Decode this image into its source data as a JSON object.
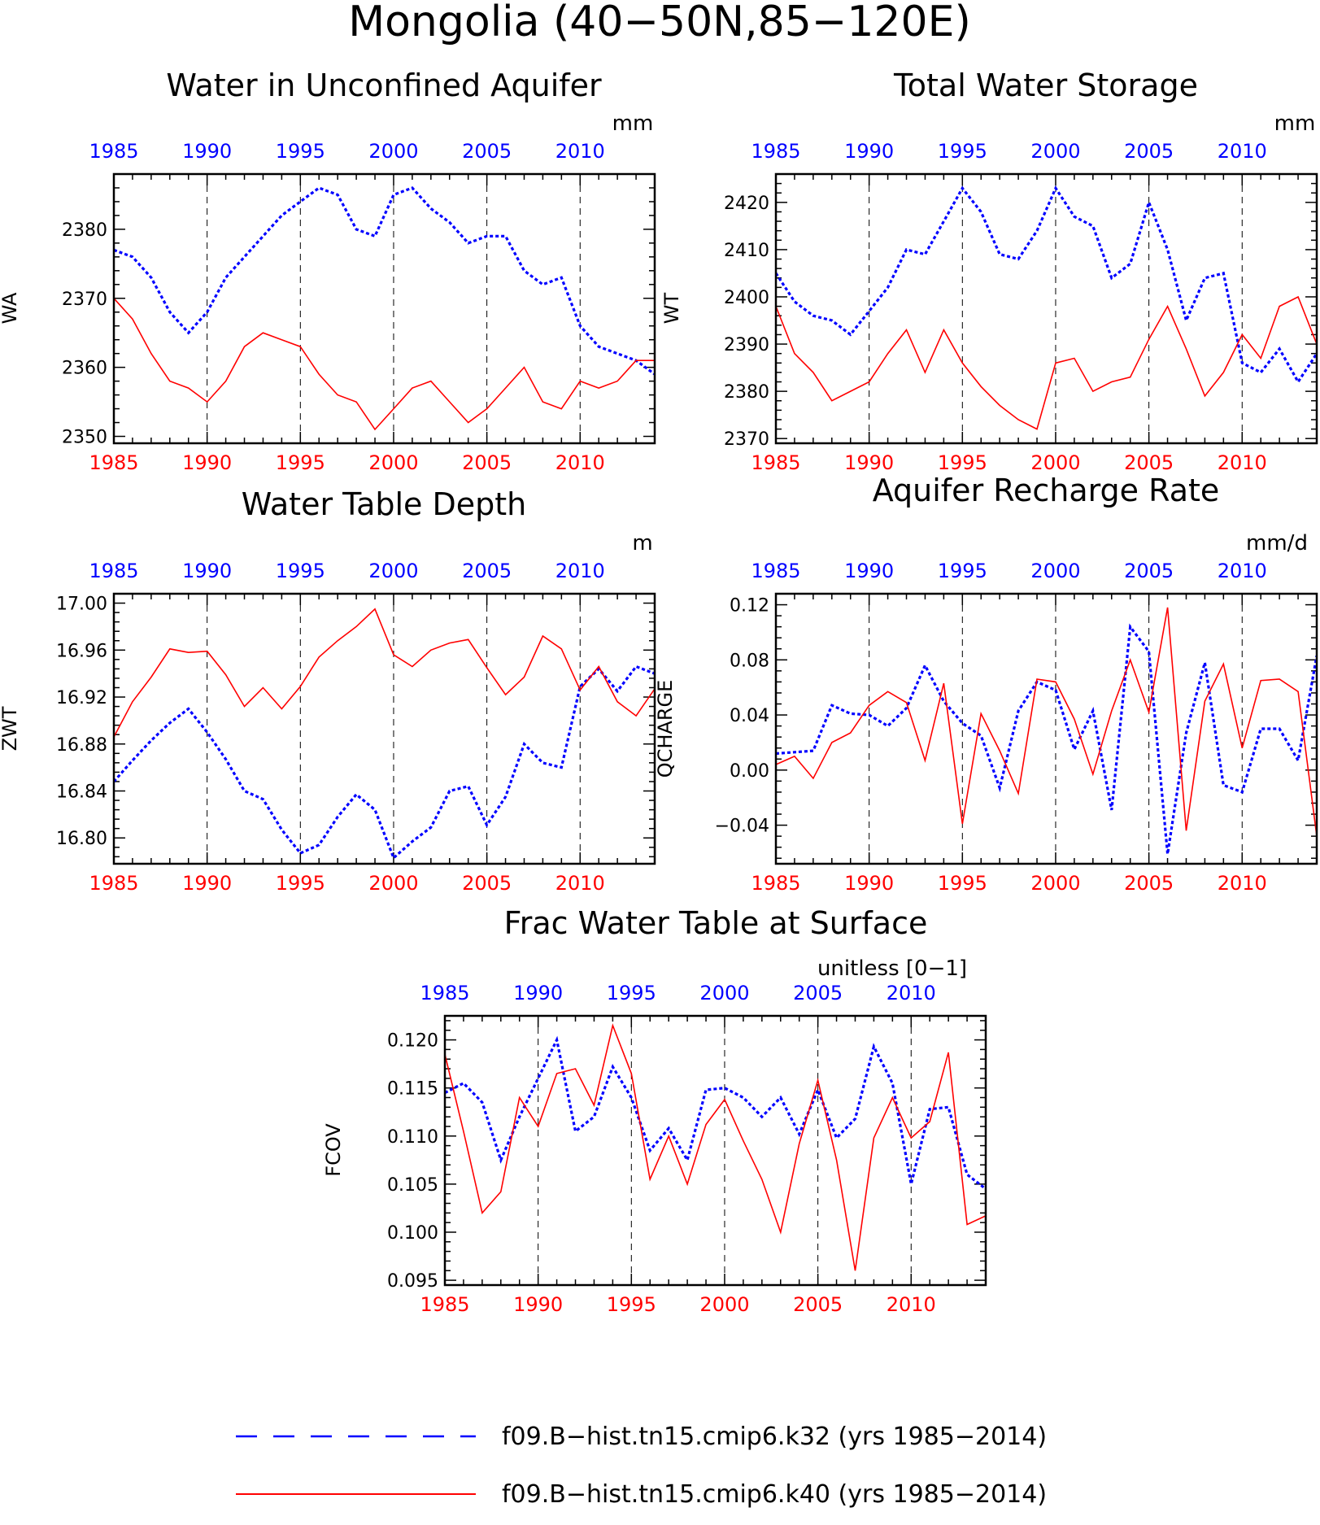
{
  "figure": {
    "title": "Mongolia (40−50N,85−120E)",
    "colors": {
      "k32": "#0000ff",
      "k40": "#ff0000",
      "axis": "#000000"
    },
    "legend": {
      "placement": "bottom",
      "entries": [
        {
          "series": "k32",
          "label": "f09.B−hist.tn15.cmip6.k32 (yrs 1985−2014)",
          "style": "dashed"
        },
        {
          "series": "k40",
          "label": "f09.B−hist.tn15.cmip6.k40 (yrs 1985−2014)",
          "style": "solid"
        }
      ]
    }
  },
  "chart_data": [
    {
      "id": "wa",
      "type": "line",
      "title": "Water in Unconfined Aquifer",
      "ylabel": "WA",
      "units": "mm",
      "xlim": [
        1985,
        2014
      ],
      "ylim": [
        2349,
        2388
      ],
      "yticks": [
        2350,
        2360,
        2370,
        2380
      ],
      "ytick_labels": [
        "2350",
        "2360",
        "2370",
        "2380"
      ],
      "xticks": [
        1985,
        1990,
        1995,
        2000,
        2005,
        2010
      ],
      "grid": "vertical dashed at 1990, 1995, 2000, 2005, 2010",
      "x": [
        1985,
        1986,
        1987,
        1988,
        1989,
        1990,
        1991,
        1992,
        1993,
        1994,
        1995,
        1996,
        1997,
        1998,
        1999,
        2000,
        2001,
        2002,
        2003,
        2004,
        2005,
        2006,
        2007,
        2008,
        2009,
        2010,
        2011,
        2012,
        2013,
        2014
      ],
      "series": [
        {
          "key": "k32",
          "values": [
            2377,
            2376,
            2373,
            2368,
            2365,
            2368,
            2373,
            2376,
            2379,
            2382,
            2384,
            2386,
            2385,
            2380,
            2379,
            2385,
            2386,
            2383,
            2381,
            2378,
            2379,
            2379,
            2374,
            2372,
            2373,
            2366,
            2363,
            2362,
            2361,
            2359
          ]
        },
        {
          "key": "k40",
          "values": [
            2370,
            2367,
            2362,
            2358,
            2357,
            2355,
            2358,
            2363,
            2365,
            2364,
            2363,
            2359,
            2356,
            2355,
            2351,
            2354,
            2357,
            2358,
            2355,
            2352,
            2354,
            2357,
            2360,
            2355,
            2354,
            2358,
            2357,
            2358,
            2361,
            2361
          ]
        }
      ]
    },
    {
      "id": "wt",
      "type": "line",
      "title": "Total Water Storage",
      "ylabel": "WT",
      "units": "mm",
      "xlim": [
        1985,
        2014
      ],
      "ylim": [
        2369,
        2426
      ],
      "yticks": [
        2370,
        2380,
        2390,
        2400,
        2410,
        2420
      ],
      "ytick_labels": [
        "2370",
        "2380",
        "2390",
        "2400",
        "2410",
        "2420"
      ],
      "xticks": [
        1985,
        1990,
        1995,
        2000,
        2005,
        2010
      ],
      "grid": "vertical dashed at 1990, 1995, 2000, 2005, 2010",
      "x": [
        1985,
        1986,
        1987,
        1988,
        1989,
        1990,
        1991,
        1992,
        1993,
        1994,
        1995,
        1996,
        1997,
        1998,
        1999,
        2000,
        2001,
        2002,
        2003,
        2004,
        2005,
        2006,
        2007,
        2008,
        2009,
        2010,
        2011,
        2012,
        2013,
        2014
      ],
      "series": [
        {
          "key": "k32",
          "values": [
            2405,
            2399,
            2396,
            2395,
            2392,
            2397,
            2402,
            2410,
            2409,
            2416,
            2423,
            2418,
            2409,
            2408,
            2414,
            2423,
            2417,
            2415,
            2404,
            2407,
            2420,
            2410,
            2395,
            2404,
            2405,
            2386,
            2384,
            2389,
            2382,
            2388
          ]
        },
        {
          "key": "k40",
          "values": [
            2398,
            2388,
            2384,
            2378,
            2380,
            2382,
            2388,
            2393,
            2384,
            2393,
            2386,
            2381,
            2377,
            2374,
            2372,
            2386,
            2387,
            2380,
            2382,
            2383,
            2391,
            2398,
            2389,
            2379,
            2384,
            2392,
            2387,
            2398,
            2400,
            2390
          ]
        }
      ]
    },
    {
      "id": "zwt",
      "type": "line",
      "title": "Water Table Depth",
      "ylabel": "ZWT",
      "units": "m",
      "xlim": [
        1985,
        2014
      ],
      "ylim": [
        16.778,
        17.008
      ],
      "yticks": [
        16.8,
        16.84,
        16.88,
        16.92,
        16.96,
        17.0
      ],
      "ytick_labels": [
        "16.80",
        "16.84",
        "16.88",
        "16.92",
        "16.96",
        "17.00"
      ],
      "xticks": [
        1985,
        1990,
        1995,
        2000,
        2005,
        2010
      ],
      "grid": "vertical dashed at 1990, 1995, 2000, 2005, 2010",
      "x": [
        1985,
        1986,
        1987,
        1988,
        1989,
        1990,
        1991,
        1992,
        1993,
        1994,
        1995,
        1996,
        1997,
        1998,
        1999,
        2000,
        2001,
        2002,
        2003,
        2004,
        2005,
        2006,
        2007,
        2008,
        2009,
        2010,
        2011,
        2012,
        2013,
        2014
      ],
      "series": [
        {
          "key": "k32",
          "values": [
            16.848,
            16.866,
            16.883,
            16.898,
            16.91,
            16.89,
            16.867,
            16.84,
            16.833,
            16.807,
            16.787,
            16.794,
            16.818,
            16.837,
            16.824,
            16.783,
            16.797,
            16.809,
            16.84,
            16.844,
            16.811,
            16.835,
            16.88,
            16.864,
            16.86,
            16.929,
            16.944,
            16.925,
            16.946,
            16.94
          ]
        },
        {
          "key": "k40",
          "values": [
            16.886,
            16.916,
            16.937,
            16.961,
            16.958,
            16.959,
            16.939,
            16.912,
            16.928,
            16.91,
            16.929,
            16.954,
            16.968,
            16.98,
            16.995,
            16.956,
            16.946,
            16.96,
            16.966,
            16.969,
            16.945,
            16.922,
            16.937,
            16.972,
            16.961,
            16.926,
            16.946,
            16.916,
            16.904,
            16.927
          ]
        }
      ]
    },
    {
      "id": "qcharge",
      "type": "line",
      "title": "Aquifer Recharge Rate",
      "ylabel": "QCHARGE",
      "units": "mm/d",
      "xlim": [
        1985,
        2014
      ],
      "ylim": [
        -0.068,
        0.128
      ],
      "yticks": [
        -0.04,
        0.0,
        0.04,
        0.08,
        0.12
      ],
      "ytick_labels": [
        "−0.04",
        "0.00",
        "0.04",
        "0.08",
        "0.12"
      ],
      "xticks": [
        1985,
        1990,
        1995,
        2000,
        2005,
        2010
      ],
      "grid": "vertical dashed at 1990, 1995, 2000, 2005, 2010",
      "x": [
        1985,
        1986,
        1987,
        1988,
        1989,
        1990,
        1991,
        1992,
        1993,
        1994,
        1995,
        1996,
        1997,
        1998,
        1999,
        2000,
        2001,
        2002,
        2003,
        2004,
        2005,
        2006,
        2007,
        2008,
        2009,
        2010,
        2011,
        2012,
        2013,
        2014
      ],
      "series": [
        {
          "key": "k32",
          "values": [
            0.012,
            0.013,
            0.014,
            0.047,
            0.041,
            0.04,
            0.032,
            0.045,
            0.076,
            0.05,
            0.034,
            0.025,
            -0.013,
            0.043,
            0.064,
            0.058,
            0.015,
            0.043,
            -0.029,
            0.104,
            0.086,
            -0.061,
            0.027,
            0.078,
            -0.011,
            -0.016,
            0.03,
            0.03,
            0.007,
            0.083
          ]
        },
        {
          "key": "k40",
          "values": [
            0.004,
            0.01,
            -0.006,
            0.02,
            0.027,
            0.047,
            0.057,
            0.049,
            0.007,
            0.063,
            -0.039,
            0.041,
            0.014,
            -0.017,
            0.066,
            0.064,
            0.037,
            -0.003,
            0.043,
            0.08,
            0.042,
            0.118,
            -0.044,
            0.05,
            0.077,
            0.016,
            0.065,
            0.066,
            0.057,
            -0.048
          ]
        }
      ]
    },
    {
      "id": "fcov",
      "type": "line",
      "title": "Frac Water Table at Surface",
      "ylabel": "FCOV",
      "units": "unitless [0−1]",
      "xlim": [
        1985,
        2014
      ],
      "ylim": [
        0.0945,
        0.1225
      ],
      "yticks": [
        0.095,
        0.1,
        0.105,
        0.11,
        0.115,
        0.12
      ],
      "ytick_labels": [
        "0.095",
        "0.100",
        "0.105",
        "0.110",
        "0.115",
        "0.120"
      ],
      "xticks": [
        1985,
        1990,
        1995,
        2000,
        2005,
        2010
      ],
      "grid": "vertical dashed at 1990, 1995, 2000, 2005, 2010",
      "x": [
        1985,
        1986,
        1987,
        1988,
        1989,
        1990,
        1991,
        1992,
        1993,
        1994,
        1995,
        1996,
        1997,
        1998,
        1999,
        2000,
        2001,
        2002,
        2003,
        2004,
        2005,
        2006,
        2007,
        2008,
        2009,
        2010,
        2011,
        2012,
        2013,
        2014
      ],
      "series": [
        {
          "key": "k32",
          "values": [
            0.1145,
            0.1155,
            0.1135,
            0.1075,
            0.112,
            0.116,
            0.12,
            0.1105,
            0.112,
            0.1172,
            0.114,
            0.1085,
            0.1108,
            0.1075,
            0.1148,
            0.115,
            0.114,
            0.112,
            0.114,
            0.1102,
            0.1148,
            0.1098,
            0.1118,
            0.1193,
            0.1155,
            0.105,
            0.1128,
            0.113,
            0.106,
            0.1045
          ]
        },
        {
          "key": "k40",
          "values": [
            0.1185,
            0.1105,
            0.102,
            0.1042,
            0.114,
            0.111,
            0.1165,
            0.117,
            0.1132,
            0.1215,
            0.1165,
            0.1055,
            0.11,
            0.105,
            0.1112,
            0.1138,
            0.1095,
            0.1055,
            0.1,
            0.1092,
            0.1158,
            0.1075,
            0.096,
            0.1098,
            0.114,
            0.1098,
            0.1115,
            0.1187,
            0.1008,
            0.1017
          ]
        }
      ]
    }
  ]
}
